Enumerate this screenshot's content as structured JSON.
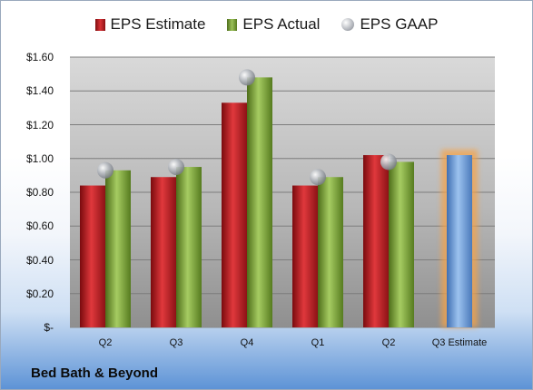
{
  "legend": [
    {
      "label": "EPS Estimate",
      "icon": "red-bar-swatch"
    },
    {
      "label": "EPS Actual",
      "icon": "green-bar-swatch"
    },
    {
      "label": "EPS GAAP",
      "icon": "gray-ball-swatch"
    }
  ],
  "company_name": "Bed Bath & Beyond",
  "colors": {
    "estimate": "#c0202a",
    "actual": "#8db445",
    "gaap": "#a8adb5",
    "forecast": "#6f9fdc",
    "forecast_glow": "#f5a34a"
  },
  "chart_data": {
    "type": "bar",
    "categories": [
      "Q2",
      "Q3",
      "Q4",
      "Q1",
      "Q2",
      "Q3 Estimate"
    ],
    "series": [
      {
        "name": "EPS Estimate",
        "values": [
          0.84,
          0.89,
          1.33,
          0.84,
          1.02,
          1.02
        ]
      },
      {
        "name": "EPS Actual",
        "values": [
          0.93,
          0.95,
          1.48,
          0.89,
          0.98,
          null
        ]
      },
      {
        "name": "EPS GAAP",
        "values": [
          0.93,
          0.95,
          1.48,
          0.89,
          0.98,
          null
        ]
      }
    ],
    "yticks": [
      "$-",
      "$0.20",
      "$0.40",
      "$0.60",
      "$0.80",
      "$1.00",
      "$1.20",
      "$1.40",
      "$1.60"
    ],
    "ylim": [
      0,
      1.6
    ],
    "grid": true,
    "legend_position": "top"
  }
}
